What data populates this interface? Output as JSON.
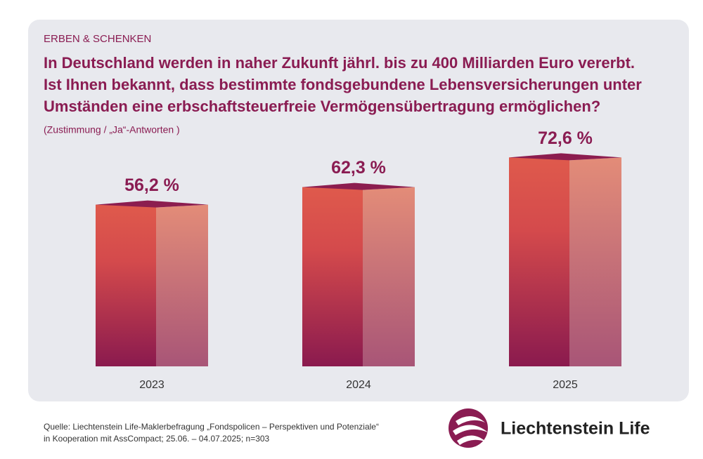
{
  "chart_data": {
    "type": "bar3d",
    "tag": "ERBEN & SCHENKEN",
    "title": [
      "In Deutschland werden in naher Zukunft jährl. bis zu 400 Milliarden Euro vererbt.",
      "Ist Ihnen bekannt, dass bestimmte fondsgebundene Lebensversicherungen unter",
      "Umständen eine erbschaftsteuerfreie Vermögensübertragung ermöglichen?"
    ],
    "subtitle": "(Zustimmung / „Ja“-Antworten )",
    "categories": [
      "2023",
      "2024",
      "2025"
    ],
    "values": [
      56.2,
      62.3,
      72.6
    ],
    "value_labels": [
      "56,2 %",
      "62,3 %",
      "72,6 %"
    ],
    "source": [
      "Quelle: Liechtenstein Life-Maklerbefragung „Fondspolicen – Perspektiven und Potenziale“",
      "in Kooperation mit AssCompact; 25.06. – 04.07.2025; n=303"
    ],
    "brand": "Liechtenstein Life"
  }
}
